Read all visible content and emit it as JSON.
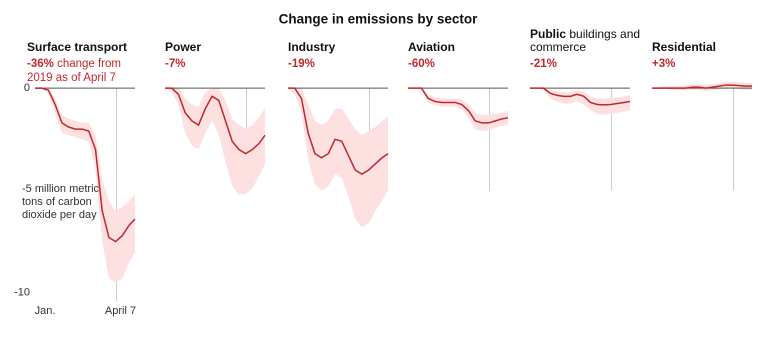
{
  "title": "Change in emissions by sector",
  "chart_data": [
    {
      "type": "line",
      "title": "Surface transport",
      "annotation": "-36%",
      "annotation_note": "change from 2019 as of April 7",
      "x": [
        1,
        9,
        17,
        25,
        33,
        41,
        49,
        57,
        65,
        73,
        81,
        89,
        97,
        105,
        113,
        120
      ],
      "values": [
        0,
        0,
        -0.1,
        -0.8,
        -1.7,
        -1.9,
        -2.0,
        -2.0,
        -2.1,
        -3.0,
        -6.0,
        -7.3,
        -7.5,
        -7.2,
        -6.7,
        -6.4
      ],
      "lower": [
        0,
        0,
        -0.3,
        -1.2,
        -2.2,
        -2.3,
        -2.4,
        -2.5,
        -2.6,
        -4.0,
        -7.5,
        -9.3,
        -9.5,
        -9.3,
        -8.5,
        -8.0
      ],
      "upper": [
        0,
        0,
        0,
        -0.5,
        -1.3,
        -1.5,
        -1.6,
        -1.7,
        -1.7,
        -2.3,
        -4.5,
        -5.5,
        -6.0,
        -5.8,
        -5.5,
        -5.2
      ],
      "color": "#c0272d",
      "band_color": "#fde1e0",
      "xlim": [
        1,
        120
      ],
      "ylim": [
        -10.5,
        0.3
      ],
      "xticks": [
        {
          "value": 1,
          "label": "Jan."
        },
        {
          "value": 98,
          "label": "April 7"
        }
      ],
      "yticks": [
        0,
        -5,
        -10
      ],
      "y_label": "million metric tons of carbon dioxide per day"
    },
    {
      "type": "line",
      "title": "Power",
      "annotation": "-7%",
      "x": [
        1,
        9,
        17,
        25,
        33,
        41,
        49,
        57,
        65,
        73,
        81,
        89,
        97,
        105,
        113,
        120
      ],
      "values": [
        0,
        0,
        -0.3,
        -1.2,
        -1.6,
        -1.8,
        -1.0,
        -0.4,
        -0.6,
        -1.6,
        -2.6,
        -3.0,
        -3.2,
        -3.0,
        -2.7,
        -2.3
      ],
      "lower": [
        0,
        -0.2,
        -0.8,
        -2.2,
        -2.8,
        -3.0,
        -2.2,
        -1.6,
        -2.3,
        -3.6,
        -4.8,
        -5.2,
        -5.2,
        -4.9,
        -4.3,
        -3.7
      ],
      "upper": [
        0,
        0,
        0,
        -0.5,
        -0.8,
        -0.9,
        -0.2,
        0,
        0,
        -0.6,
        -1.5,
        -1.8,
        -2.0,
        -1.8,
        -1.4,
        -1.0
      ],
      "color": "#c0272d",
      "band_color": "#fde1e0",
      "xlim": [
        1,
        120
      ],
      "ylim": [
        -10.5,
        0.3
      ]
    },
    {
      "type": "line",
      "title": "Industry",
      "annotation": "-19%",
      "x": [
        1,
        9,
        17,
        25,
        33,
        41,
        49,
        57,
        65,
        73,
        81,
        89,
        97,
        105,
        113,
        120
      ],
      "values": [
        0,
        0,
        -0.5,
        -2.2,
        -3.2,
        -3.4,
        -3.2,
        -2.5,
        -2.6,
        -3.3,
        -4.0,
        -4.2,
        -4.0,
        -3.7,
        -3.4,
        -3.2
      ],
      "lower": [
        0,
        -0.3,
        -1.2,
        -3.5,
        -4.7,
        -5.0,
        -4.8,
        -4.2,
        -4.4,
        -5.3,
        -6.4,
        -6.8,
        -6.6,
        -6.0,
        -5.5,
        -5.0
      ],
      "upper": [
        0,
        0,
        0,
        -0.8,
        -1.6,
        -1.8,
        -1.6,
        -1.0,
        -1.0,
        -1.5,
        -2.0,
        -2.3,
        -2.1,
        -1.9,
        -1.6,
        -1.4
      ],
      "color": "#c0272d",
      "band_color": "#fde1e0",
      "xlim": [
        1,
        120
      ],
      "ylim": [
        -10.5,
        0.3
      ]
    },
    {
      "type": "line",
      "title": "Aviation",
      "annotation": "-60%",
      "x": [
        1,
        9,
        17,
        25,
        33,
        41,
        49,
        57,
        65,
        73,
        81,
        89,
        97,
        105,
        113,
        120
      ],
      "values": [
        0,
        0,
        0,
        -0.5,
        -0.65,
        -0.7,
        -0.7,
        -0.7,
        -0.8,
        -1.1,
        -1.6,
        -1.7,
        -1.7,
        -1.6,
        -1.5,
        -1.45
      ],
      "lower": [
        0,
        0,
        -0.1,
        -0.7,
        -0.85,
        -0.9,
        -0.9,
        -0.9,
        -1.05,
        -1.45,
        -2.0,
        -2.1,
        -2.05,
        -1.95,
        -1.85,
        -1.8
      ],
      "upper": [
        0,
        0,
        0,
        -0.3,
        -0.45,
        -0.5,
        -0.5,
        -0.5,
        -0.55,
        -0.8,
        -1.2,
        -1.3,
        -1.3,
        -1.25,
        -1.2,
        -1.1
      ],
      "color": "#c0272d",
      "band_color": "#fde1e0",
      "xlim": [
        1,
        120
      ],
      "ylim": [
        -10.5,
        0.3
      ]
    },
    {
      "type": "line",
      "title": "Public",
      "title_note": "buildings and commerce",
      "annotation": "-21%",
      "x": [
        1,
        9,
        17,
        25,
        33,
        41,
        49,
        57,
        65,
        73,
        81,
        89,
        97,
        105,
        113,
        120
      ],
      "values": [
        0,
        0,
        0,
        -0.25,
        -0.35,
        -0.4,
        -0.4,
        -0.3,
        -0.4,
        -0.7,
        -0.8,
        -0.82,
        -0.8,
        -0.75,
        -0.7,
        -0.65
      ],
      "lower": [
        0,
        0,
        -0.1,
        -0.5,
        -0.65,
        -0.75,
        -0.75,
        -0.65,
        -0.8,
        -1.1,
        -1.25,
        -1.3,
        -1.25,
        -1.2,
        -1.15,
        -1.1
      ],
      "upper": [
        0,
        0,
        0,
        -0.1,
        -0.15,
        -0.2,
        -0.2,
        -0.1,
        -0.15,
        -0.4,
        -0.5,
        -0.5,
        -0.48,
        -0.45,
        -0.4,
        -0.35
      ],
      "color": "#c0272d",
      "band_color": "#fde1e0",
      "xlim": [
        1,
        120
      ],
      "ylim": [
        -10.5,
        0.3
      ]
    },
    {
      "type": "line",
      "title": "Residential",
      "annotation": "+3%",
      "x": [
        1,
        9,
        17,
        25,
        33,
        41,
        49,
        57,
        65,
        73,
        81,
        89,
        97,
        105,
        113,
        120
      ],
      "values": [
        0,
        0,
        0,
        0,
        0,
        0,
        0.05,
        0.05,
        0,
        0.05,
        0.1,
        0.15,
        0.15,
        0.12,
        0.1,
        0.1
      ],
      "lower": [
        0,
        0,
        -0.05,
        -0.1,
        -0.1,
        -0.1,
        -0.1,
        -0.1,
        -0.15,
        -0.1,
        -0.05,
        0,
        0,
        -0.05,
        -0.1,
        -0.1
      ],
      "upper": [
        0,
        0.05,
        0.1,
        0.1,
        0.1,
        0.15,
        0.2,
        0.2,
        0.15,
        0.2,
        0.25,
        0.3,
        0.3,
        0.28,
        0.25,
        0.25
      ],
      "color": "#c0272d",
      "band_color": "#fde1e0",
      "xlim": [
        1,
        120
      ],
      "ylim": [
        -10.5,
        0.3
      ]
    }
  ]
}
